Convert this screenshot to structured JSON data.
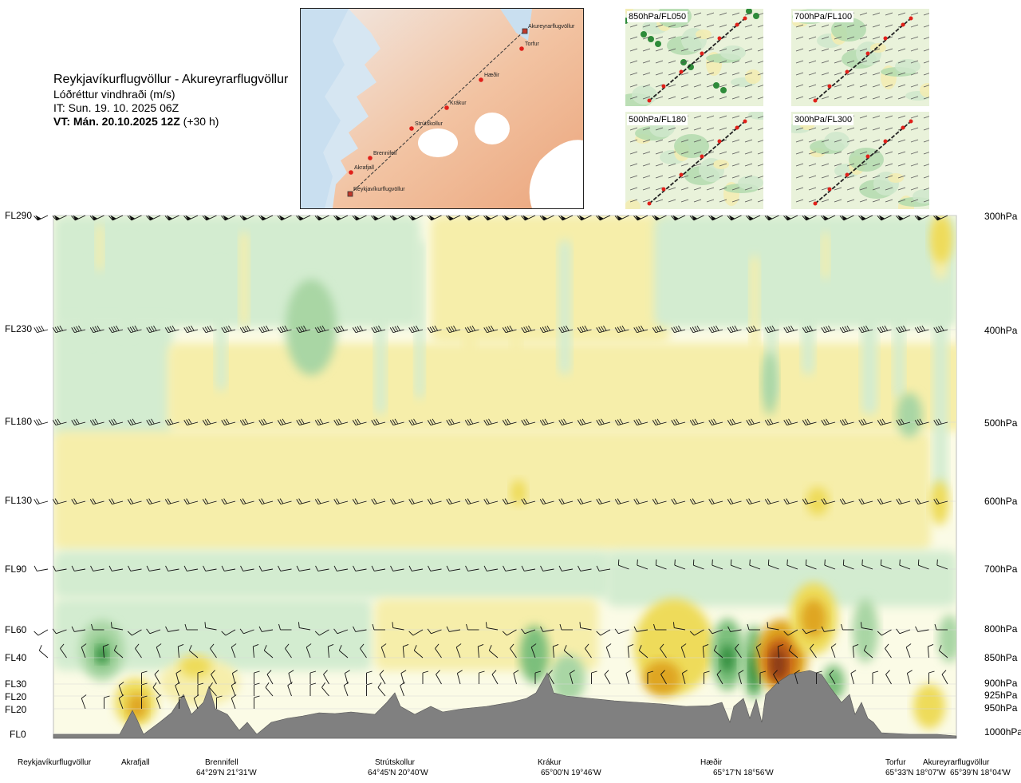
{
  "header": {
    "route": "Reykjavíkurflugvöllur - Akureyrarflugvöllur",
    "variable": "Lóðréttur vindhraði (m/s)",
    "issue_time": "IT: Sun. 19. 10. 2025 06Z",
    "valid_time_bold": "VT: Mán. 20.10.2025 12Z",
    "valid_time_offset": " (+30 h)"
  },
  "route_map": {
    "waypoints": [
      "Akureyrarflugvöllur",
      "Torfur",
      "Hæðir",
      "Krákur",
      "Strútskollur",
      "Brennifell",
      "Akrafjall",
      "Reykjavíkurflugvöllur"
    ]
  },
  "mini_maps": [
    {
      "label": "850hPa/FL050"
    },
    {
      "label": "700hPa/FL100"
    },
    {
      "label": "500hPa/FL180"
    },
    {
      "label": "300hPa/FL300"
    }
  ],
  "chart_data": {
    "type": "heatmap",
    "title": "Lóðréttur vindhraði (m/s)",
    "x_axis": "route distance (Reykjavíkurflugvöllur → Akureyrarflugvöllur)",
    "left_levels": [
      {
        "label": "FL290",
        "hpa": 300
      },
      {
        "label": "FL230",
        "hpa": 400
      },
      {
        "label": "FL180",
        "hpa": 500
      },
      {
        "label": "FL130",
        "hpa": 600
      },
      {
        "label": "FL90",
        "hpa": 700
      },
      {
        "label": "FL60",
        "hpa": 800
      },
      {
        "label": "FL40",
        "hpa": 850
      },
      {
        "label": "FL30",
        "hpa": 900
      },
      {
        "label": "FL20",
        "hpa": 925
      },
      {
        "label": "FL20",
        "hpa": 950
      },
      {
        "label": "FL0",
        "hpa": 1000
      }
    ],
    "right_levels": [
      "300hPa",
      "400hPa",
      "500hPa",
      "600hPa",
      "700hPa",
      "800hPa",
      "850hPa",
      "900hPa",
      "925hPa",
      "950hPa",
      "1000hPa"
    ],
    "locations": [
      {
        "name": "Reykjavíkurflugvöllur",
        "coord": ""
      },
      {
        "name": "Akrafjall",
        "coord": ""
      },
      {
        "name": "Brennifell",
        "coord": "64°29'N 21°31'W"
      },
      {
        "name": "Strútskollur",
        "coord": "64°45'N 20°40'W"
      },
      {
        "name": "Krákur",
        "coord": "65°00'N 19°46'W"
      },
      {
        "name": "Hæðir",
        "coord": "65°17'N 18°56'W"
      },
      {
        "name": "Torfur",
        "coord": "65°33'N 18°07'W"
      },
      {
        "name": "Akureyrarflugvöllur",
        "coord": "65°39'N 18°04'W"
      }
    ],
    "colors": {
      "strong_sink": "#2e8b3a",
      "mod_sink": "#7bbf7b",
      "weak_sink": "#a9d6a4",
      "light_sink": "#d3ecd0",
      "neutral": "#fbfbe6",
      "light_rise": "#f6eeaa",
      "mod_rise": "#eedb5a",
      "strong_rise": "#dfa622",
      "very_strong_rise": "#c66414",
      "extreme_rise": "#8a3a12",
      "terrain": "#808080"
    }
  }
}
